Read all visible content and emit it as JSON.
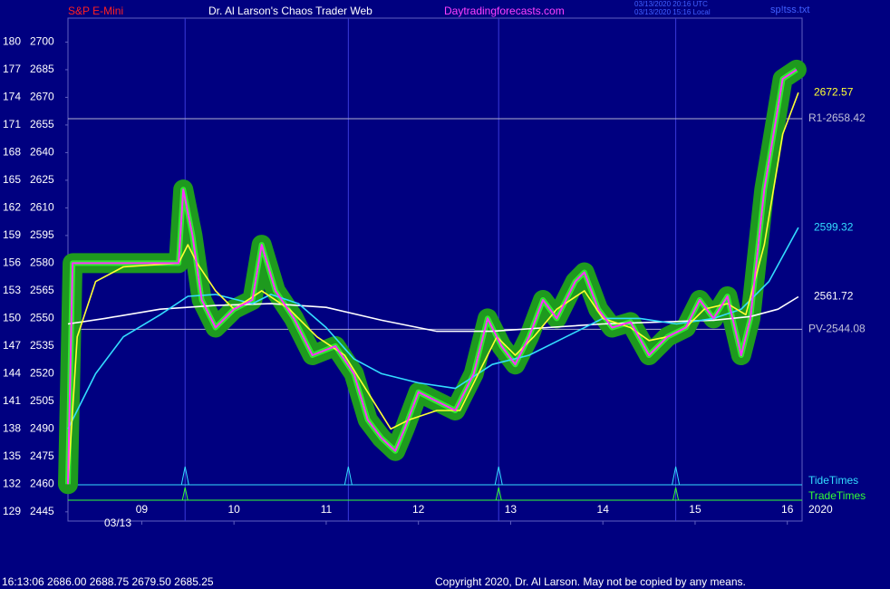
{
  "chart_data": {
    "type": "line",
    "header": {
      "left": "S&P E-Mini",
      "center": "Dr. Al Larson's Chaos Trader Web",
      "site": "Daytradingforecasts.com",
      "stamp_utc": "03/13/2020 20:16 UTC",
      "stamp_local": "03/13/2020 15:16 Local",
      "file": "sp!tss.txt"
    },
    "date_label": "03/13",
    "xlim": [
      8.2,
      16.16
    ],
    "xticks": [
      {
        "value": 9,
        "label": "09"
      },
      10,
      11,
      12,
      13,
      14,
      15,
      16
    ],
    "ylim": [
      2440,
      2713
    ],
    "yticks": [
      2700,
      2685,
      2670,
      2655,
      2640,
      2625,
      2610,
      2595,
      2580,
      2565,
      2550,
      2535,
      2520,
      2505,
      2490,
      2475,
      2460,
      2445
    ],
    "y2lim": [
      128,
      182.6
    ],
    "y2ticks": [
      180,
      177,
      174,
      171,
      168,
      165,
      162,
      159,
      156,
      153,
      150,
      147,
      144,
      141,
      138,
      135,
      132,
      129
    ],
    "series": [
      {
        "name": "Price",
        "color": "#ff33ff",
        "x": [
          8.2,
          8.25,
          9.4,
          9.45,
          9.55,
          9.65,
          9.8,
          10.0,
          10.2,
          10.3,
          10.45,
          10.65,
          10.85,
          11.1,
          11.3,
          11.45,
          11.6,
          11.75,
          11.85,
          12.0,
          12.2,
          12.4,
          12.6,
          12.75,
          12.9,
          13.05,
          13.2,
          13.35,
          13.5,
          13.7,
          13.8,
          13.95,
          14.1,
          14.3,
          14.5,
          14.7,
          14.9,
          15.05,
          15.2,
          15.35,
          15.5,
          15.6,
          15.75,
          15.85,
          15.95,
          16.1
        ],
        "values": [
          2460,
          2580,
          2580,
          2620,
          2595,
          2560,
          2545,
          2555,
          2560,
          2590,
          2565,
          2550,
          2530,
          2535,
          2520,
          2495,
          2485,
          2478,
          2490,
          2510,
          2505,
          2500,
          2520,
          2550,
          2535,
          2525,
          2540,
          2560,
          2550,
          2570,
          2575,
          2555,
          2545,
          2548,
          2530,
          2540,
          2545,
          2560,
          2550,
          2562,
          2530,
          2550,
          2620,
          2650,
          2680,
          2685
        ]
      },
      {
        "name": "Yellow",
        "color": "#ffff33",
        "x": [
          8.2,
          8.3,
          8.5,
          8.8,
          9.4,
          9.5,
          9.6,
          9.8,
          10.0,
          10.3,
          10.6,
          10.9,
          11.2,
          11.45,
          11.7,
          11.9,
          12.2,
          12.45,
          12.65,
          12.85,
          13.05,
          13.25,
          13.5,
          13.8,
          14.0,
          14.3,
          14.5,
          14.7,
          14.9,
          15.1,
          15.35,
          15.55,
          15.75,
          15.95,
          16.12
        ],
        "values": [
          2460,
          2540,
          2570,
          2578,
          2580,
          2590,
          2580,
          2565,
          2555,
          2565,
          2555,
          2540,
          2530,
          2510,
          2490,
          2495,
          2500,
          2500,
          2520,
          2540,
          2530,
          2540,
          2555,
          2565,
          2550,
          2545,
          2538,
          2540,
          2545,
          2555,
          2558,
          2552,
          2590,
          2650,
          2672.57
        ]
      },
      {
        "name": "Cyan",
        "color": "#33ddff",
        "x": [
          8.2,
          8.5,
          8.8,
          9.2,
          9.5,
          9.8,
          10.2,
          10.4,
          10.7,
          11.0,
          11.3,
          11.6,
          12.0,
          12.4,
          12.8,
          13.2,
          13.6,
          14.0,
          14.4,
          14.8,
          15.2,
          15.5,
          15.8,
          16.12
        ],
        "values": [
          2490,
          2520,
          2540,
          2552,
          2562,
          2563,
          2558,
          2563,
          2558,
          2545,
          2528,
          2520,
          2515,
          2512,
          2525,
          2530,
          2540,
          2550,
          2550,
          2547,
          2550,
          2555,
          2570,
          2599.32
        ]
      },
      {
        "name": "White",
        "color": "#ffffff",
        "x": [
          8.2,
          8.6,
          9.2,
          9.8,
          10.4,
          11.0,
          11.6,
          12.2,
          12.8,
          13.4,
          14.0,
          14.6,
          15.2,
          15.6,
          15.9,
          16.12
        ],
        "values": [
          2547,
          2550,
          2555,
          2557,
          2558,
          2556,
          2549,
          2543,
          2543,
          2545,
          2547,
          2548,
          2549,
          2551,
          2555,
          2561.72
        ]
      }
    ],
    "levels": [
      {
        "label": "R1-2658.42",
        "value": 2658.42
      },
      {
        "label": "PV-2544.08",
        "value": 2544.08
      }
    ],
    "tide_times": {
      "label": "TideTimes",
      "color": "#33ddff",
      "x": [
        9.47,
        11.24,
        12.87,
        14.79
      ]
    },
    "trade_times": {
      "label": "TradeTimes",
      "color": "#33ff33",
      "x": [
        9.47,
        12.87,
        14.79
      ]
    },
    "year_label": "2020",
    "footer_quote": "16:13:06  2686.00 2688.75 2679.50 2685.25",
    "copyright": "Copyright 2020, Dr. Al Larson. May not be copied by any means."
  }
}
